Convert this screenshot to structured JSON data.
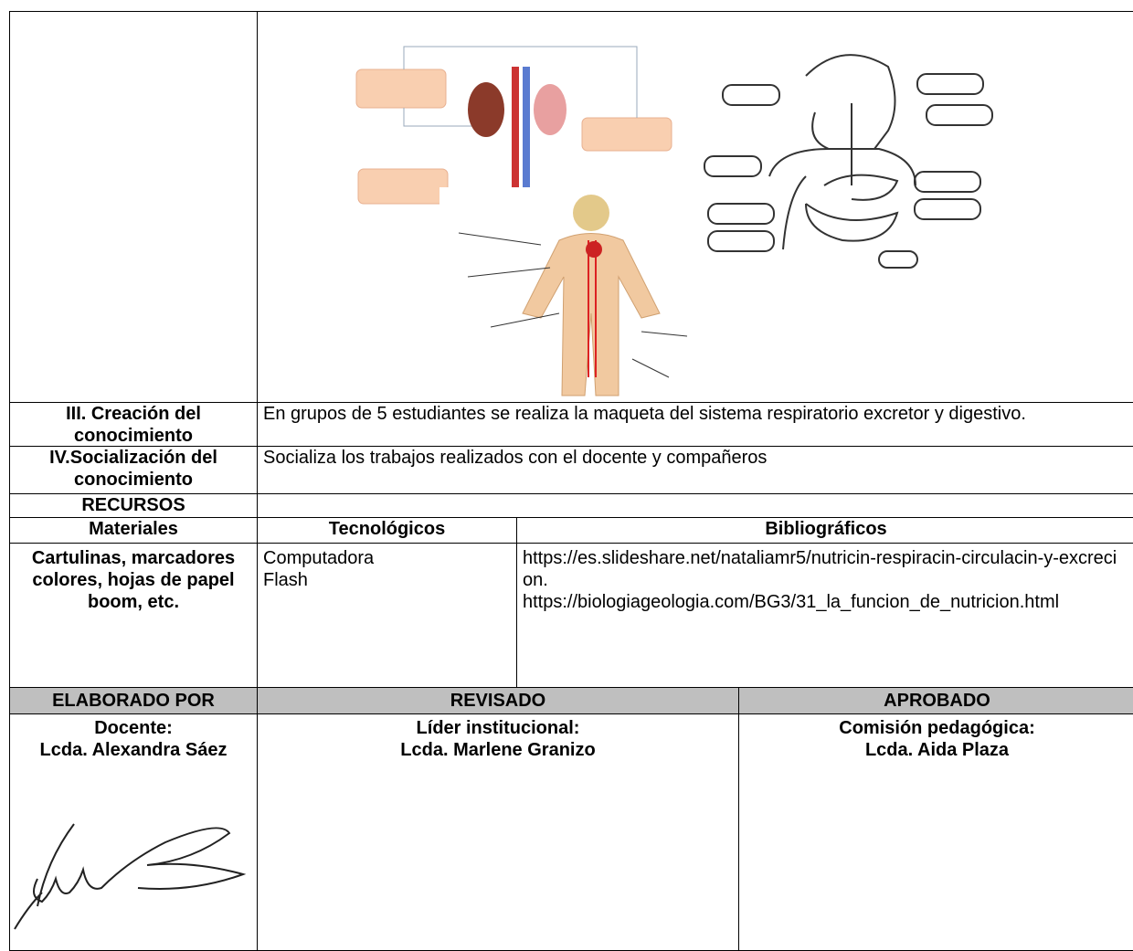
{
  "activity_rows": [
    {
      "label": "III. Creación del conocimiento",
      "text": "En grupos de 5 estudiantes se realiza la maqueta del sistema respiratorio excretor y digestivo."
    },
    {
      "label": "IV.Socialización del conocimiento",
      "text": "Socializa los trabajos realizados con el docente y compañeros"
    }
  ],
  "resources": {
    "title": "RECURSOS",
    "headers": [
      "Materiales",
      "Tecnológicos",
      "Bibliográficos"
    ],
    "materials": "Cartulinas, marcadores colores, hojas de papel boom, etc.",
    "technological": [
      "Computadora",
      "Flash"
    ],
    "bibliographic": [
      "https://es.slideshare.net/nataliamr5/nutricin-respiracin-circulacin-y-excrecion.",
      "https://biologiageologia.com/BG3/31_la_funcion_de_nutricion.html"
    ]
  },
  "approval": {
    "headers": [
      "ELABORADO POR",
      "REVISADO",
      "APROBADO"
    ],
    "people": [
      {
        "role": "Docente:",
        "name": "Lcda. Alexandra Sáez"
      },
      {
        "role": "Líder institucional:",
        "name": "Lcda. Marlene Granizo"
      },
      {
        "role": "Comisión pedagógica:",
        "name": "Lcda. Aida Plaza"
      }
    ]
  }
}
